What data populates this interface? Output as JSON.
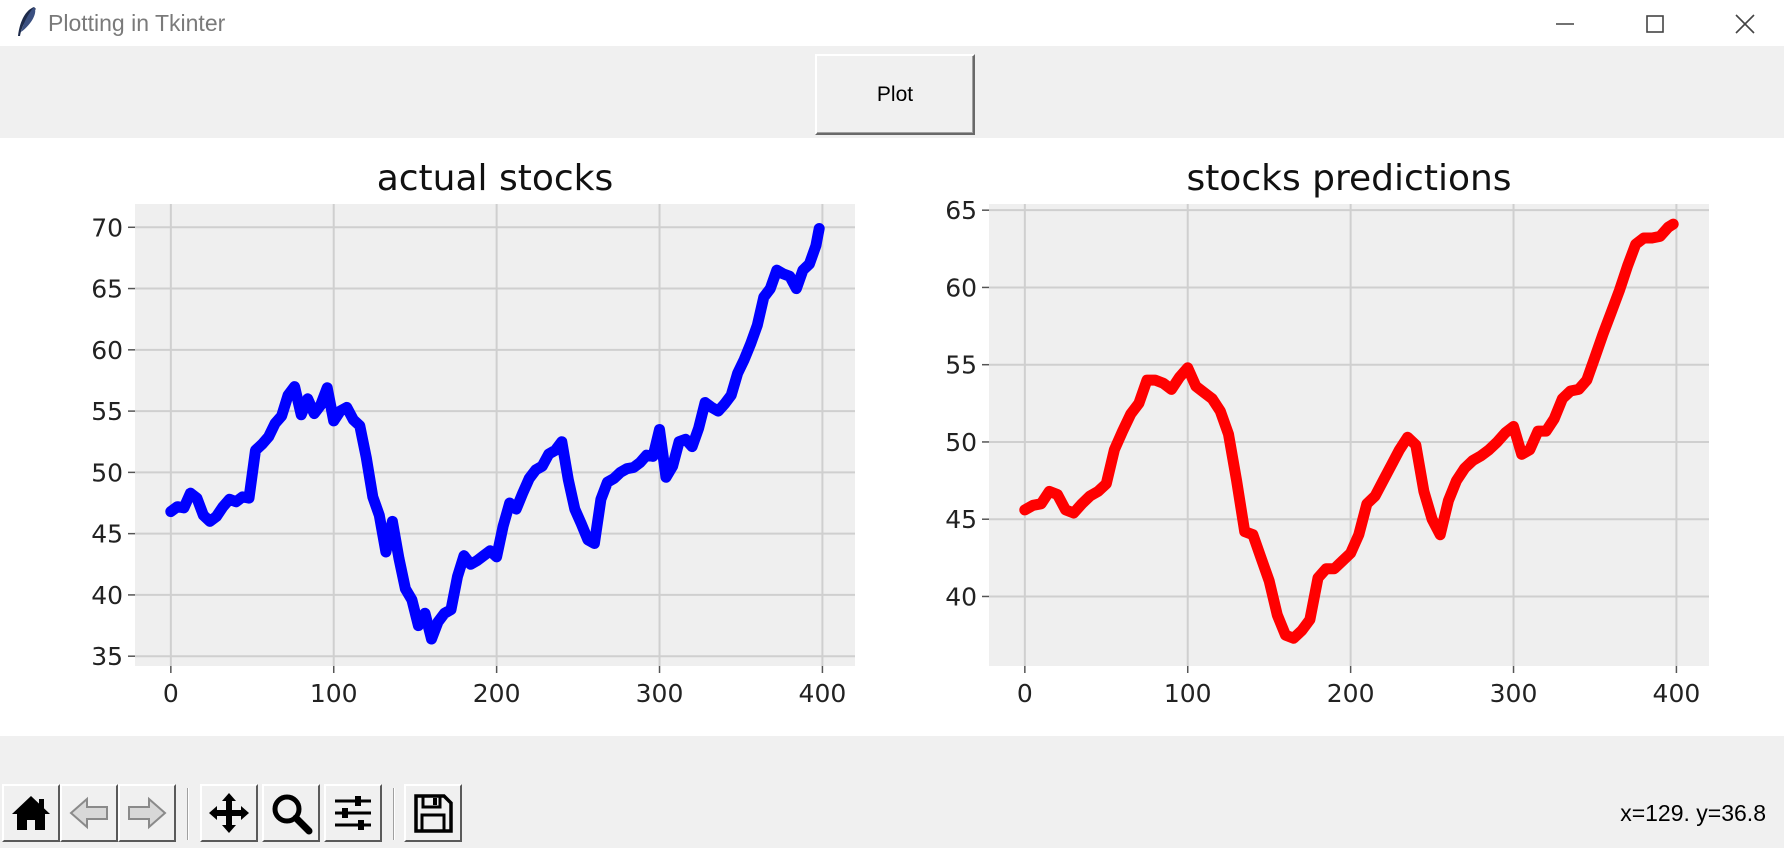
{
  "window": {
    "title": "Plotting in Tkinter",
    "icon": "feather-icon",
    "controls": [
      "minimize-icon",
      "maximize-icon",
      "close-icon"
    ]
  },
  "controls": {
    "plot_label": "Plot"
  },
  "toolbar": {
    "buttons": [
      "home-icon",
      "back-icon",
      "forward-icon",
      "pan-icon",
      "zoom-icon",
      "configure-subplots-icon",
      "save-icon"
    ],
    "coords": "x=129. y=36.8"
  },
  "chart_data": [
    {
      "type": "line",
      "title": "actual stocks",
      "xlabel": "",
      "ylabel": "",
      "xlim": [
        -22,
        420
      ],
      "ylim": [
        34.2,
        71.9
      ],
      "xticks": [
        0,
        100,
        200,
        300,
        400
      ],
      "yticks": [
        35,
        40,
        45,
        50,
        55,
        60,
        65,
        70
      ],
      "grid": true,
      "color": "#0000ff",
      "x": [
        0,
        4,
        8,
        12,
        16,
        20,
        24,
        28,
        32,
        36,
        40,
        44,
        48,
        52,
        56,
        60,
        64,
        68,
        72,
        76,
        80,
        84,
        88,
        92,
        96,
        100,
        104,
        108,
        112,
        116,
        120,
        124,
        128,
        132,
        136,
        140,
        144,
        148,
        152,
        156,
        160,
        164,
        168,
        172,
        176,
        180,
        184,
        188,
        192,
        196,
        200,
        204,
        208,
        212,
        216,
        220,
        224,
        228,
        232,
        236,
        240,
        244,
        248,
        252,
        256,
        260,
        264,
        268,
        272,
        276,
        280,
        284,
        288,
        292,
        296,
        300,
        304,
        308,
        312,
        316,
        320,
        324,
        328,
        332,
        336,
        340,
        344,
        348,
        352,
        356,
        360,
        364,
        368,
        372,
        376,
        380,
        384,
        388,
        392,
        396,
        398
      ],
      "y": [
        46.8,
        47.2,
        47.1,
        48.3,
        47.9,
        46.5,
        46.0,
        46.4,
        47.2,
        47.8,
        47.6,
        48.0,
        47.9,
        51.8,
        52.3,
        52.9,
        54.0,
        54.6,
        56.3,
        57.0,
        54.7,
        56.0,
        54.8,
        55.5,
        56.9,
        54.2,
        55.0,
        55.3,
        54.3,
        53.8,
        51.2,
        48.0,
        46.5,
        43.5,
        46.0,
        43.0,
        40.5,
        39.6,
        37.5,
        38.5,
        36.4,
        37.8,
        38.5,
        38.8,
        41.5,
        43.2,
        42.5,
        42.8,
        43.2,
        43.6,
        43.1,
        45.6,
        47.5,
        47.0,
        48.3,
        49.5,
        50.2,
        50.5,
        51.5,
        51.8,
        52.5,
        49.4,
        47.0,
        45.8,
        44.5,
        44.2,
        47.8,
        49.2,
        49.5,
        50.0,
        50.3,
        50.4,
        50.8,
        51.4,
        51.3,
        53.5,
        49.6,
        50.5,
        52.5,
        52.7,
        52.1,
        53.6,
        55.7,
        55.3,
        55.0,
        55.6,
        56.3,
        58.1,
        59.2,
        60.5,
        62.0,
        64.3,
        65.0,
        66.5,
        66.2,
        66.0,
        65.0,
        66.5,
        67.0,
        68.5,
        69.9
      ]
    },
    {
      "type": "line",
      "title": "stocks predictions",
      "xlabel": "",
      "ylabel": "",
      "xlim": [
        -22,
        420
      ],
      "ylim": [
        35.5,
        65.4
      ],
      "xticks": [
        0,
        100,
        200,
        300,
        400
      ],
      "yticks": [
        40,
        45,
        50,
        55,
        60,
        65
      ],
      "grid": true,
      "color": "#ff0000",
      "x": [
        0,
        5,
        10,
        15,
        20,
        25,
        30,
        35,
        40,
        45,
        50,
        55,
        60,
        65,
        70,
        75,
        80,
        85,
        90,
        95,
        100,
        105,
        110,
        115,
        120,
        125,
        130,
        135,
        140,
        145,
        150,
        155,
        160,
        165,
        170,
        175,
        180,
        185,
        190,
        195,
        200,
        205,
        210,
        215,
        220,
        225,
        230,
        235,
        240,
        245,
        250,
        255,
        260,
        265,
        270,
        275,
        280,
        285,
        290,
        295,
        300,
        305,
        310,
        315,
        320,
        325,
        330,
        335,
        340,
        345,
        350,
        355,
        360,
        365,
        370,
        375,
        380,
        385,
        390,
        395,
        398
      ],
      "y": [
        45.6,
        45.9,
        46.0,
        46.8,
        46.6,
        45.6,
        45.4,
        46.0,
        46.5,
        46.8,
        47.3,
        49.5,
        50.7,
        51.8,
        52.5,
        54.0,
        54.0,
        53.8,
        53.4,
        54.2,
        54.8,
        53.6,
        53.2,
        52.8,
        52.0,
        50.5,
        47.5,
        44.2,
        44.0,
        42.5,
        41.0,
        38.8,
        37.5,
        37.3,
        37.8,
        38.5,
        41.2,
        41.8,
        41.8,
        42.3,
        42.8,
        44.0,
        46.0,
        46.5,
        47.5,
        48.5,
        49.5,
        50.3,
        49.8,
        46.8,
        45.0,
        44.0,
        46.2,
        47.5,
        48.3,
        48.8,
        49.1,
        49.5,
        50.0,
        50.6,
        51.0,
        49.2,
        49.5,
        50.7,
        50.7,
        51.5,
        52.8,
        53.3,
        53.4,
        54.0,
        55.5,
        57.0,
        58.4,
        59.8,
        61.4,
        62.8,
        63.2,
        63.2,
        63.3,
        63.9,
        64.1
      ]
    }
  ]
}
